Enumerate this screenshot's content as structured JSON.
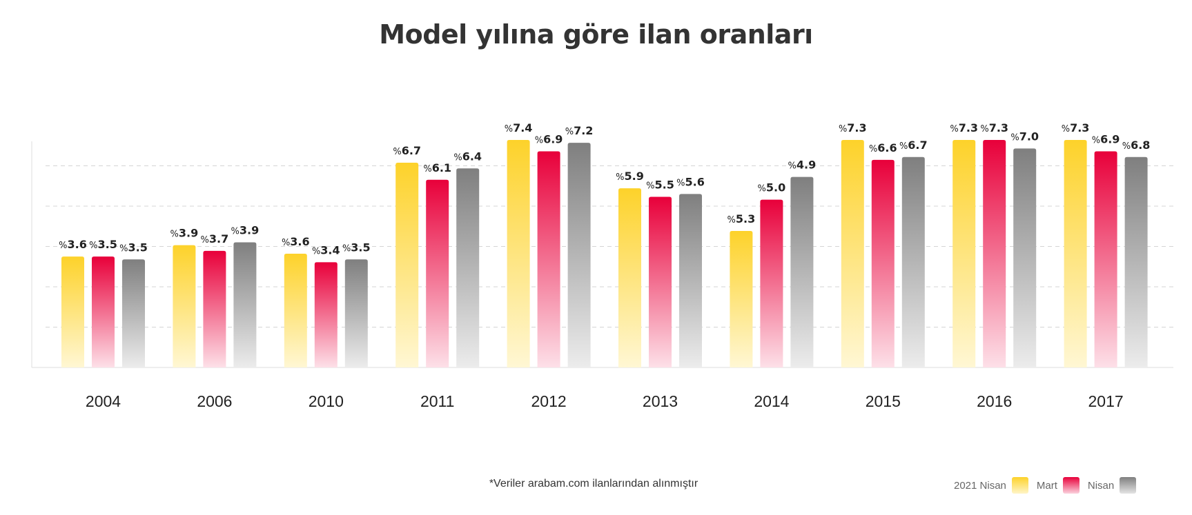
{
  "chart_data": {
    "type": "bar",
    "title": "Model yılına göre ilan oranları",
    "xlabel": "",
    "ylabel": "",
    "value_prefix": "%",
    "ylim": [
      0,
      8
    ],
    "grid": true,
    "legend_position": "bottom-right",
    "categories": [
      "2004",
      "2006",
      "2010",
      "2011",
      "2012",
      "2013",
      "2014",
      "2015",
      "2016",
      "2017"
    ],
    "series": [
      {
        "name": "2021 Nisan",
        "color": "#fdd22a",
        "values": [
          3.6,
          3.9,
          3.6,
          6.7,
          7.4,
          5.9,
          5.3,
          7.3,
          7.3,
          7.3
        ]
      },
      {
        "name": "Mart",
        "color": "#e8003a",
        "values": [
          3.5,
          3.7,
          3.4,
          6.1,
          6.9,
          5.5,
          5.0,
          6.6,
          7.3,
          6.9
        ]
      },
      {
        "name": "Nisan",
        "color": "#7f7f7f",
        "values": [
          3.5,
          3.9,
          3.5,
          6.4,
          7.2,
          5.6,
          4.9,
          6.7,
          7.0,
          6.8
        ]
      }
    ],
    "bar_heights_shown": [
      [
        3.9,
        4.3,
        4.0,
        7.2,
        8.0,
        6.3,
        4.8,
        8.0,
        8.0,
        8.0
      ],
      [
        3.9,
        4.1,
        3.7,
        6.6,
        7.6,
        6.0,
        5.9,
        7.3,
        8.0,
        7.6
      ],
      [
        3.8,
        4.4,
        3.8,
        7.0,
        7.9,
        6.1,
        6.7,
        7.4,
        7.7,
        7.4
      ]
    ]
  },
  "footnote": "*Veriler arabam.com ilanlarından alınmıştır",
  "legend": {
    "items": [
      {
        "label": "2021 Nisan",
        "swatch": "yellow"
      },
      {
        "label": "Mart",
        "swatch": "red"
      },
      {
        "label": "Nisan",
        "swatch": "gray"
      }
    ]
  }
}
